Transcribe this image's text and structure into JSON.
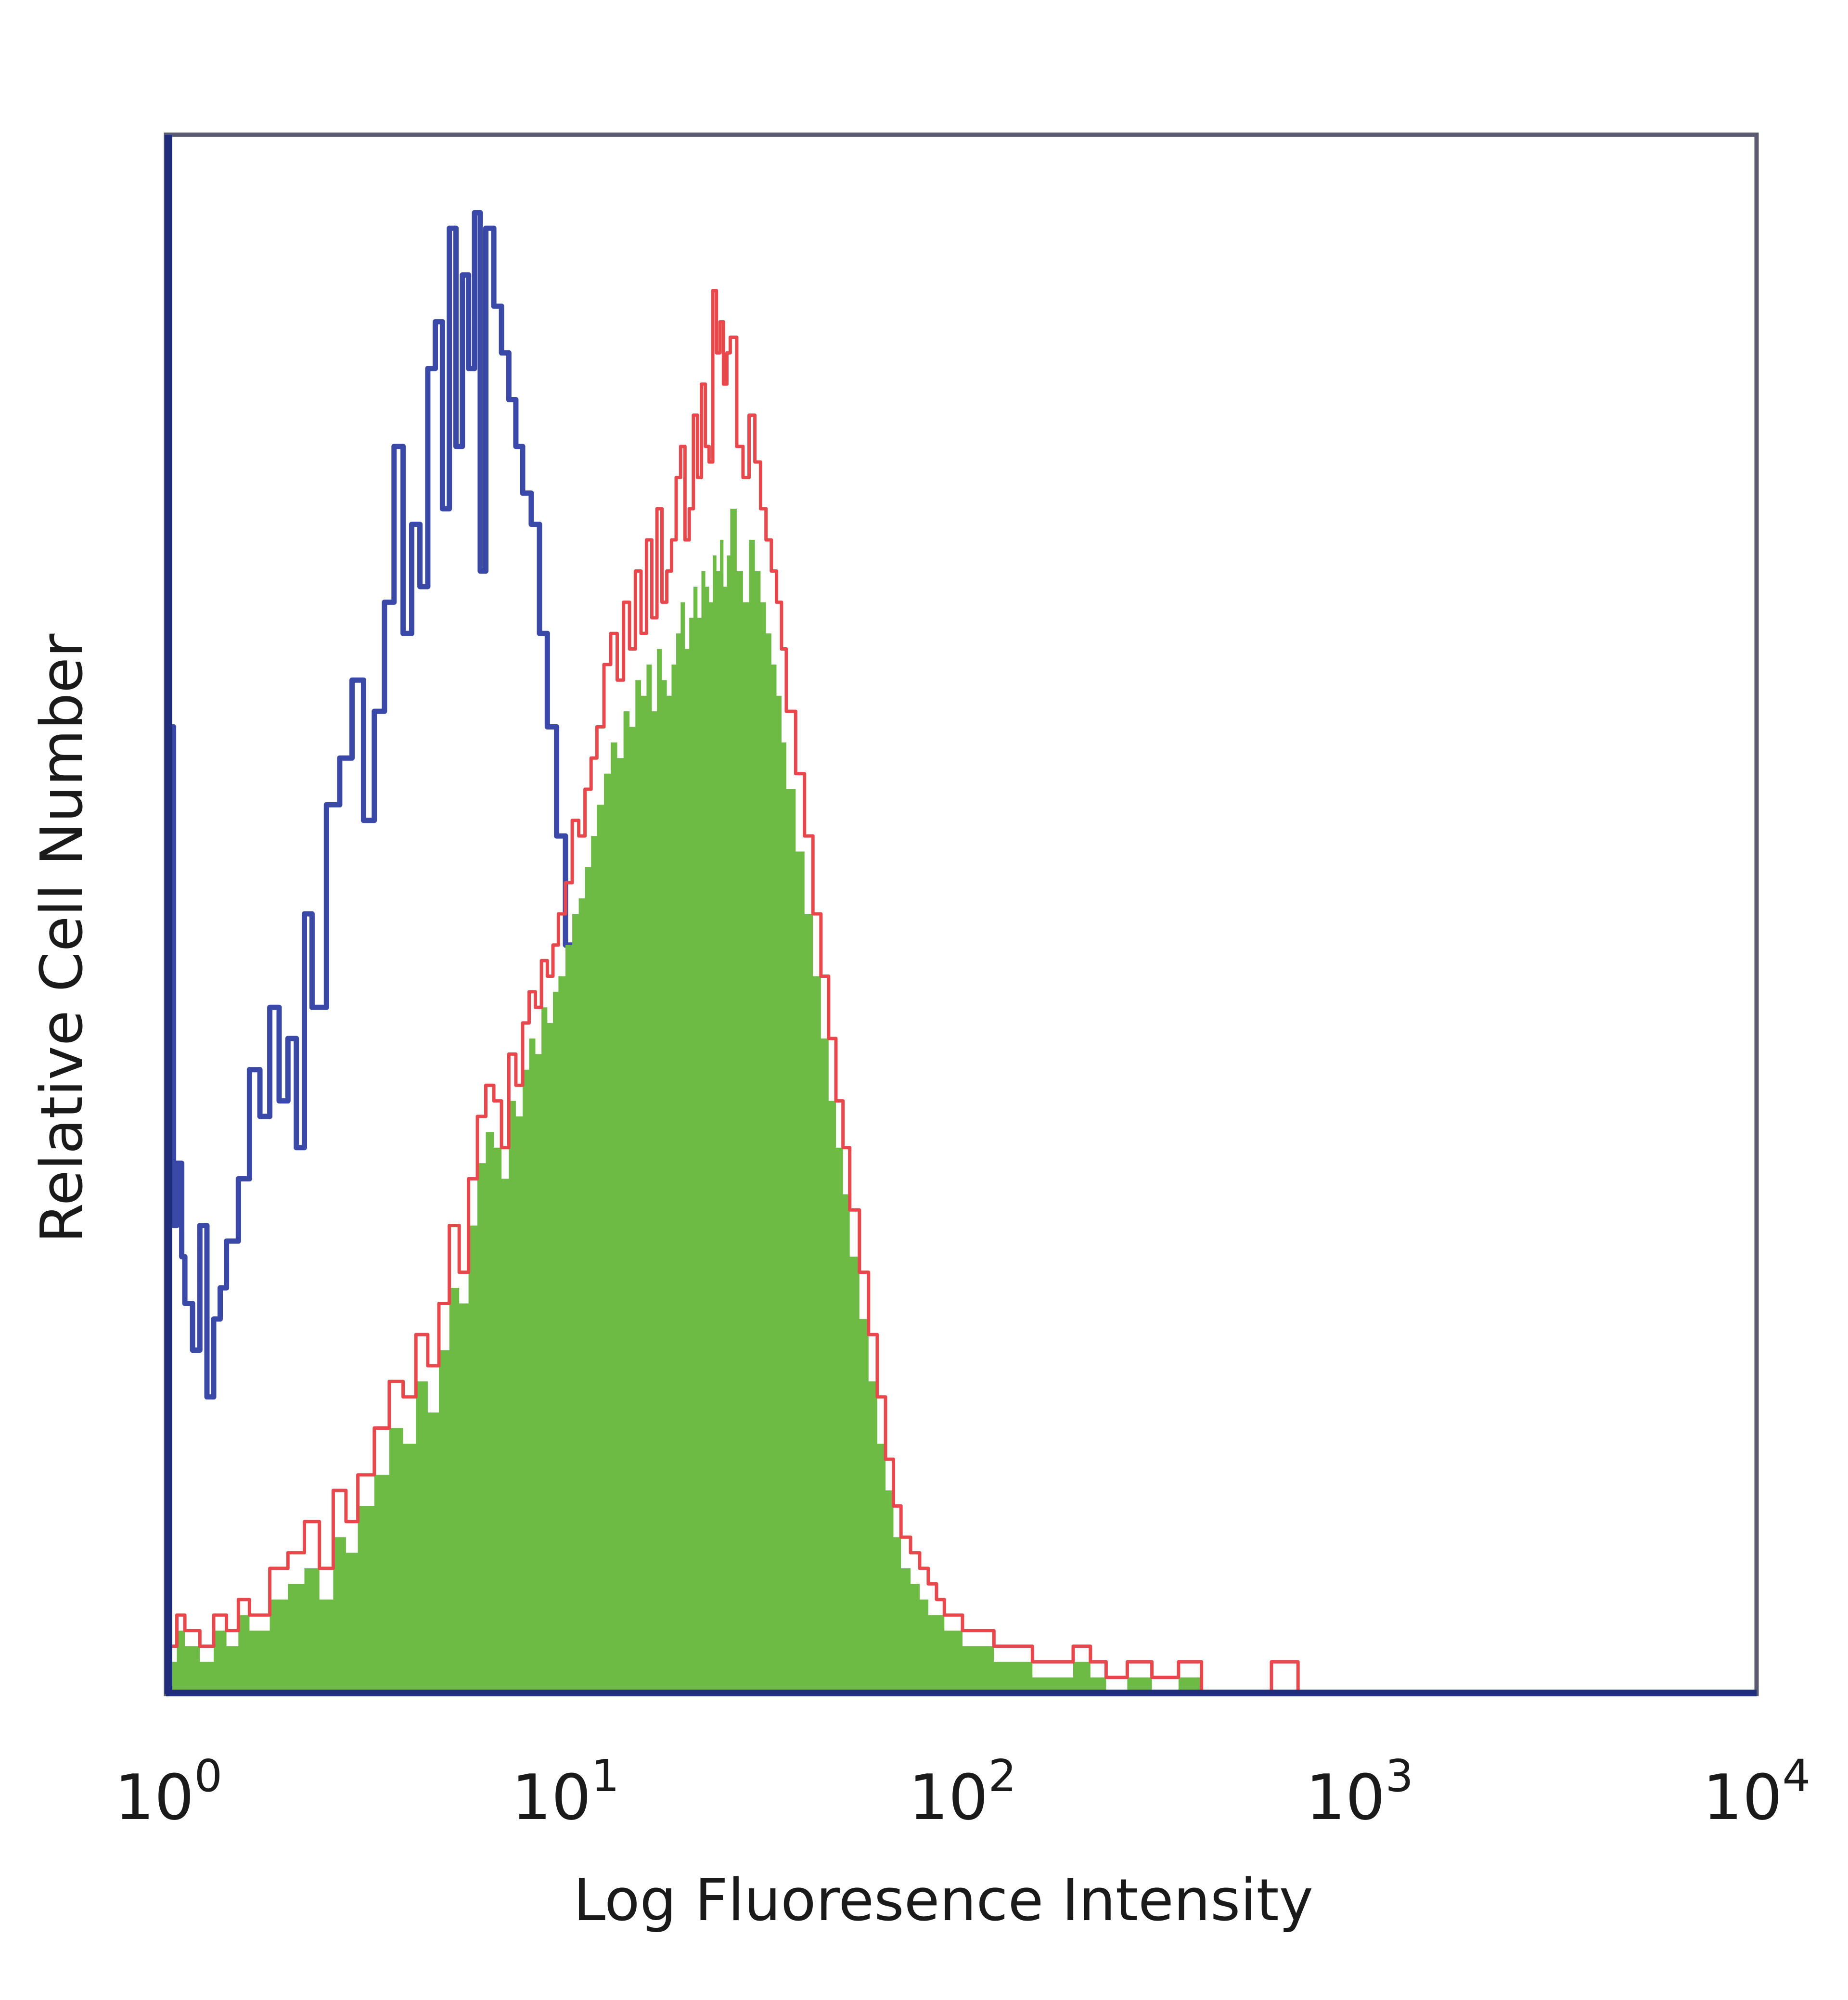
{
  "chart_data": {
    "type": "area",
    "xlabel": "Log Fluoresence Intensity",
    "ylabel": "Relative Cell Number",
    "xscale": "log",
    "xlim": [
      1,
      10000
    ],
    "ylim": [
      0,
      100
    ],
    "grid": false,
    "legend": "none",
    "x_ticks": [
      {
        "base": "10",
        "exp": "0",
        "value": 1
      },
      {
        "base": "10",
        "exp": "1",
        "value": 10
      },
      {
        "base": "10",
        "exp": "2",
        "value": 100
      },
      {
        "base": "10",
        "exp": "3",
        "value": 1000
      },
      {
        "base": "10",
        "exp": "4",
        "value": 10000
      }
    ],
    "series": [
      {
        "style": "outline",
        "color": "#3a48a8",
        "x": [
          1.0,
          1.03,
          1.05,
          1.08,
          1.1,
          1.15,
          1.2,
          1.25,
          1.3,
          1.35,
          1.4,
          1.5,
          1.6,
          1.7,
          1.8,
          1.9,
          2.0,
          2.1,
          2.2,
          2.3,
          2.5,
          2.7,
          2.9,
          3.1,
          3.3,
          3.5,
          3.7,
          3.9,
          4.1,
          4.3,
          4.5,
          4.7,
          4.9,
          5.1,
          5.3,
          5.5,
          5.7,
          5.9,
          6.1,
          6.3,
          6.6,
          6.9,
          7.2,
          7.5,
          7.8,
          8.2,
          8.6,
          9.0,
          9.5,
          10.0,
          10.5,
          11.0,
          11.5,
          12.0,
          12.6,
          13.2,
          13.8,
          14.5,
          15.2,
          16.0,
          17.0,
          18.0,
          19.0,
          20.0,
          21.0,
          22.0,
          23.0,
          24.0,
          25.0,
          26.0,
          27.0,
          28.0,
          30.0,
          32.0,
          35.0,
          40.0,
          50.0,
          60.0,
          70.0,
          80.0,
          85.0,
          90.0,
          100.0,
          200.0,
          1000.0,
          10000.0
        ],
        "values": [
          62,
          30,
          34,
          28,
          25,
          22,
          30,
          19,
          24,
          26,
          29,
          33,
          40,
          37,
          44,
          38,
          42,
          35,
          50,
          44,
          57,
          60,
          65,
          56,
          63,
          70,
          80,
          68,
          75,
          71,
          85,
          88,
          76,
          94,
          80,
          91,
          85,
          95,
          72,
          94,
          89,
          86,
          83,
          80,
          77,
          75,
          68,
          62,
          55,
          48,
          44,
          40,
          36,
          32,
          28,
          24,
          20,
          15,
          12,
          10,
          6,
          4,
          3,
          2,
          2,
          1,
          2,
          0,
          2,
          0,
          2,
          0,
          1,
          0,
          1,
          0,
          0,
          0,
          0,
          0,
          2,
          0,
          0,
          0,
          0,
          0
        ]
      },
      {
        "style": "filled",
        "color": "#6dbb45",
        "x": [
          1.0,
          1.05,
          1.1,
          1.2,
          1.3,
          1.4,
          1.5,
          1.6,
          1.8,
          2.0,
          2.2,
          2.4,
          2.6,
          2.8,
          3.0,
          3.3,
          3.6,
          3.9,
          4.2,
          4.5,
          4.8,
          5.1,
          5.4,
          5.7,
          6.0,
          6.3,
          6.6,
          6.9,
          7.2,
          7.5,
          7.8,
          8.1,
          8.4,
          8.7,
          9.0,
          9.3,
          9.6,
          10.0,
          10.4,
          10.8,
          11.2,
          11.6,
          12.0,
          12.5,
          13.0,
          13.5,
          14.0,
          14.5,
          15.0,
          15.5,
          16.0,
          16.5,
          17.0,
          17.5,
          18.0,
          18.5,
          19.0,
          19.5,
          20.0,
          20.5,
          21.0,
          21.5,
          22.0,
          22.5,
          23.0,
          23.5,
          24.0,
          24.5,
          25.0,
          25.5,
          26.0,
          27.0,
          28.0,
          29.0,
          30.0,
          31.0,
          32.0,
          33.0,
          34.0,
          35.0,
          36.0,
          38.0,
          40.0,
          42.0,
          44.0,
          46.0,
          48.0,
          50.0,
          52.0,
          55.0,
          58.0,
          61.0,
          64.0,
          67.0,
          70.0,
          74.0,
          78.0,
          82.0,
          86.0,
          90.0,
          95.0,
          100.0,
          110.0,
          120.0,
          130.0,
          150.0,
          170.0,
          190.0,
          210.0,
          230.0,
          260.0,
          300.0,
          350.0,
          400.0,
          450.0,
          500.0,
          600.0,
          700.0,
          1000.0,
          10000.0
        ],
        "values": [
          2,
          4,
          3,
          2,
          4,
          3,
          5,
          4,
          6,
          7,
          8,
          6,
          10,
          9,
          12,
          14,
          17,
          16,
          20,
          18,
          22,
          26,
          25,
          30,
          34,
          36,
          35,
          33,
          38,
          37,
          40,
          42,
          41,
          44,
          43,
          45,
          46,
          48,
          50,
          51,
          53,
          55,
          57,
          59,
          61,
          60,
          63,
          62,
          65,
          64,
          66,
          63,
          67,
          65,
          64,
          66,
          68,
          70,
          67,
          69,
          71,
          69,
          72,
          71,
          70,
          73,
          72,
          74,
          71,
          73,
          76,
          72,
          70,
          74,
          72,
          70,
          68,
          66,
          64,
          61,
          58,
          54,
          50,
          46,
          42,
          38,
          35,
          32,
          28,
          24,
          20,
          16,
          13,
          10,
          8,
          7,
          6,
          5,
          5,
          4,
          4,
          3,
          3,
          2,
          2,
          1,
          1,
          2,
          1,
          0,
          1,
          0,
          1,
          0,
          0,
          0,
          0,
          0,
          0,
          0
        ]
      },
      {
        "style": "outline",
        "color": "#e8484c",
        "x": [
          1.0,
          1.05,
          1.1,
          1.2,
          1.3,
          1.4,
          1.5,
          1.6,
          1.8,
          2.0,
          2.2,
          2.4,
          2.6,
          2.8,
          3.0,
          3.3,
          3.6,
          3.9,
          4.2,
          4.5,
          4.8,
          5.1,
          5.4,
          5.7,
          6.0,
          6.3,
          6.6,
          6.9,
          7.2,
          7.5,
          7.8,
          8.1,
          8.4,
          8.7,
          9.0,
          9.3,
          9.6,
          10.0,
          10.4,
          10.8,
          11.2,
          11.6,
          12.0,
          12.5,
          13.0,
          13.5,
          14.0,
          14.5,
          15.0,
          15.5,
          16.0,
          16.5,
          17.0,
          17.5,
          18.0,
          18.5,
          19.0,
          19.5,
          20.0,
          20.5,
          21.0,
          21.5,
          22.0,
          22.5,
          23.0,
          23.5,
          24.0,
          24.5,
          25.0,
          25.5,
          26.0,
          27.0,
          28.0,
          29.0,
          30.0,
          31.0,
          32.0,
          33.0,
          34.0,
          35.0,
          36.0,
          38.0,
          40.0,
          42.0,
          44.0,
          46.0,
          48.0,
          50.0,
          52.0,
          55.0,
          58.0,
          61.0,
          64.0,
          67.0,
          70.0,
          74.0,
          78.0,
          82.0,
          86.0,
          90.0,
          95.0,
          100.0,
          110.0,
          120.0,
          130.0,
          150.0,
          170.0,
          190.0,
          210.0,
          230.0,
          260.0,
          300.0,
          350.0,
          400.0,
          450.0,
          500.0,
          600.0,
          700.0,
          1000.0,
          10000.0
        ],
        "values": [
          3,
          5,
          4,
          3,
          5,
          4,
          6,
          5,
          8,
          9,
          11,
          8,
          13,
          11,
          14,
          17,
          20,
          19,
          23,
          21,
          25,
          30,
          27,
          33,
          37,
          39,
          38,
          35,
          41,
          39,
          43,
          45,
          44,
          47,
          46,
          48,
          50,
          52,
          56,
          55,
          58,
          60,
          62,
          66,
          68,
          65,
          70,
          67,
          72,
          68,
          74,
          69,
          76,
          70,
          72,
          74,
          78,
          80,
          74,
          76,
          82,
          78,
          84,
          80,
          79,
          90,
          86,
          88,
          84,
          86,
          87,
          80,
          78,
          82,
          79,
          76,
          74,
          72,
          70,
          67,
          63,
          59,
          55,
          50,
          46,
          42,
          38,
          35,
          31,
          27,
          23,
          19,
          15,
          12,
          10,
          9,
          8,
          7,
          6,
          5,
          5,
          4,
          4,
          3,
          3,
          2,
          2,
          3,
          2,
          1,
          2,
          1,
          2,
          0,
          0,
          0,
          2,
          0,
          0,
          0
        ]
      }
    ]
  }
}
